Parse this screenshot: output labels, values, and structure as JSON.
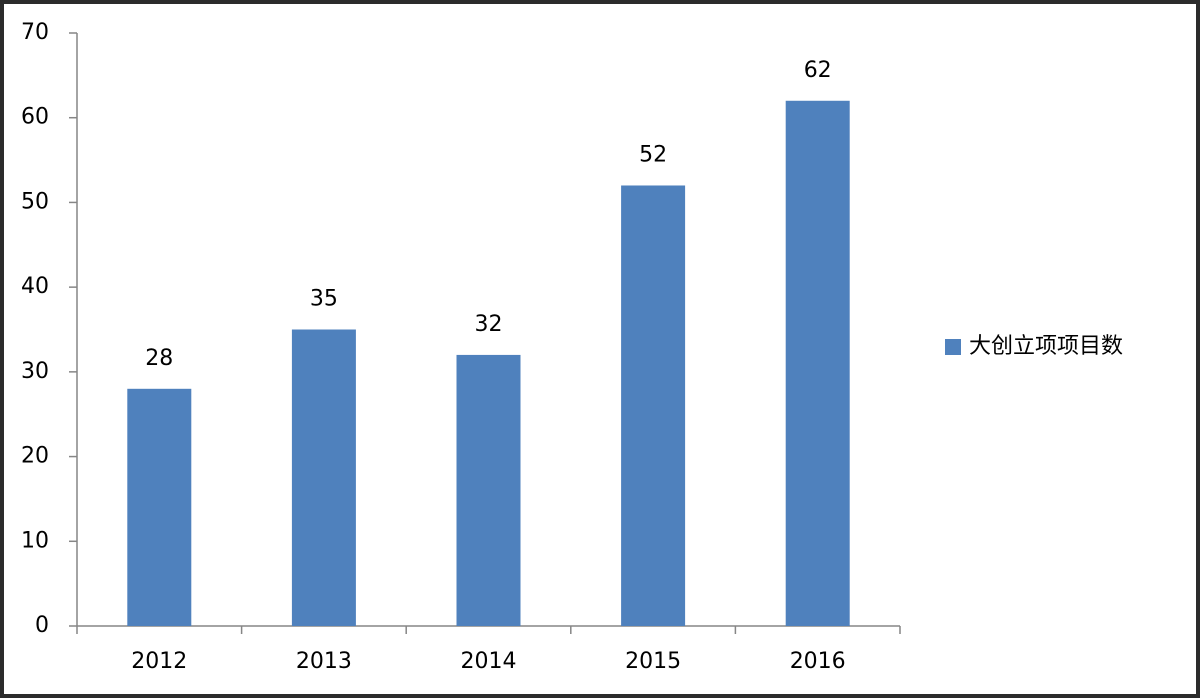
{
  "chart_data": {
    "type": "bar",
    "categories": [
      "2012",
      "2013",
      "2014",
      "2015",
      "2016"
    ],
    "series": [
      {
        "name": "大创立项项目数",
        "color": "#4f81bd",
        "values": [
          28,
          35,
          32,
          52,
          62
        ]
      }
    ],
    "ylim": [
      0,
      70
    ],
    "yticks": [
      0,
      10,
      20,
      30,
      40,
      50,
      60,
      70
    ],
    "data_labels": true,
    "legend": "right"
  }
}
